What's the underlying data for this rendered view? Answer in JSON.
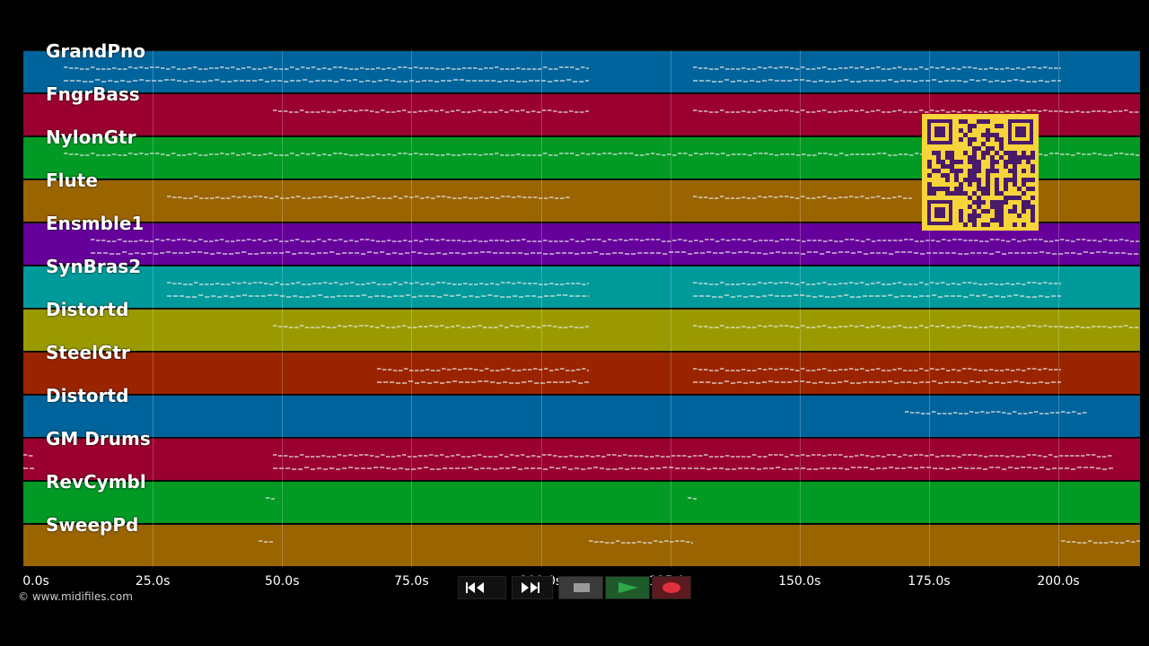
{
  "tracks": [
    {
      "name": "GrandPno",
      "color": "#00649c"
    },
    {
      "name": "FngrBass",
      "color": "#9a0030"
    },
    {
      "name": "NylonGtr",
      "color": "#009a24"
    },
    {
      "name": "Flute",
      "color": "#9a6400"
    },
    {
      "name": "Ensmble1",
      "color": "#66009a"
    },
    {
      "name": "SynBras2",
      "color": "#009a9a"
    },
    {
      "name": "Distortd",
      "color": "#9a9a00"
    },
    {
      "name": "SteelGtr",
      "color": "#9a2400"
    },
    {
      "name": "Distortd",
      "color": "#00649c"
    },
    {
      "name": "GM Drums",
      "color": "#9a0030"
    },
    {
      "name": "RevCymbl",
      "color": "#009a24"
    },
    {
      "name": "SweepPd",
      "color": "#9a6400"
    }
  ],
  "time_axis": {
    "labels": [
      "0.0s",
      "25.0s",
      "50.0s",
      "75.0s",
      "100.0s",
      "125.0s",
      "150.0s",
      "175.0s",
      "200.0s"
    ]
  },
  "copyright": "© www.midifiles.com",
  "transport": {
    "rewind_icon": "rewind-icon",
    "fastforward_icon": "fast-forward-icon",
    "stop_icon": "stop-icon",
    "play_icon": "play-icon",
    "record_icon": "record-icon",
    "play_color": "#2fa84a",
    "record_color": "#e0303a"
  },
  "qr_code": {
    "icon": "qr-code-icon",
    "color": "#f7d43a",
    "ink": "#4a1a6a"
  }
}
